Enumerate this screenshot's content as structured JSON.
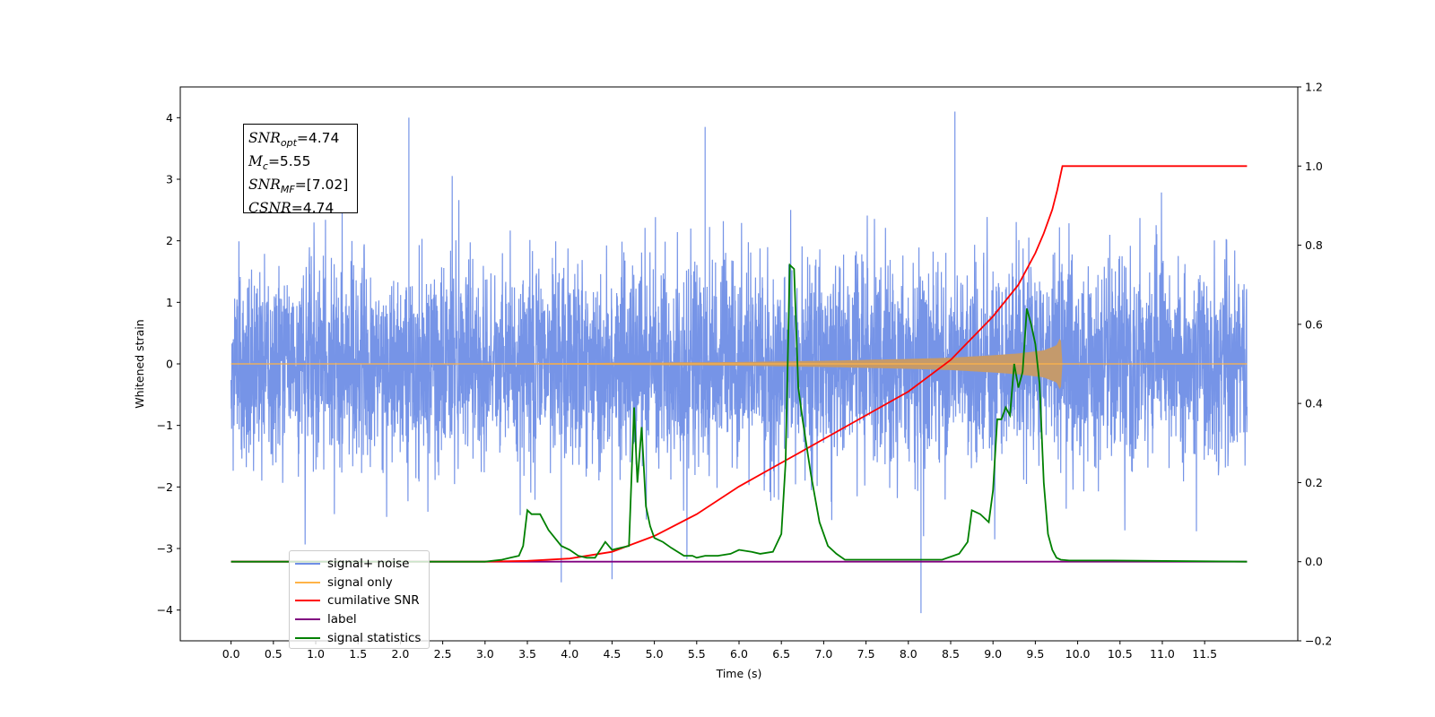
{
  "colors": {
    "signal_noise": "#6f8ee6",
    "signal_only": "#ffb347",
    "cumulative_snr": "#ff0000",
    "label": "#800080",
    "statistics": "#008000",
    "envelope": "#c49a6c"
  },
  "annotation": {
    "snr_opt": {
      "sym": "SNR",
      "sub": "opt",
      "value": "=4.74"
    },
    "mc": {
      "sym": "M",
      "sub": "c",
      "value": "=5.55"
    },
    "snr_mf": {
      "sym": "SNR",
      "sub": "MF",
      "value": "=[7.02]"
    },
    "csnr": {
      "sym": "CSNR",
      "sub": "",
      "value": "=4.74"
    }
  },
  "chart_data": {
    "type": "line",
    "xlabel": "Time (s)",
    "ylabel": "Whitened strain",
    "xlim": [
      -0.6,
      12.6
    ],
    "ylim": [
      -4.5,
      4.5
    ],
    "y2lim": [
      -0.2,
      1.2
    ],
    "x_ticks": [
      "0.0",
      "0.5",
      "1.0",
      "1.5",
      "2.0",
      "2.5",
      "3.0",
      "3.5",
      "4.0",
      "4.5",
      "5.0",
      "5.5",
      "6.0",
      "6.5",
      "7.0",
      "7.5",
      "8.0",
      "8.5",
      "9.0",
      "9.5",
      "10.0",
      "10.5",
      "11.0",
      "11.5"
    ],
    "y_ticks": [
      "−4",
      "−3",
      "−2",
      "−1",
      "0",
      "1",
      "2",
      "3",
      "4"
    ],
    "y2_ticks": [
      "−0.2",
      "0.0",
      "0.2",
      "0.4",
      "0.6",
      "0.8",
      "1.0",
      "1.2"
    ],
    "legend_position": "lower-left",
    "legend": [
      "signal+ noise",
      "signal only",
      "cumilative SNR",
      "label",
      "signal statistics"
    ],
    "series": [
      {
        "name": "signal+ noise",
        "axis": "left",
        "x_range": [
          0.0,
          12.0
        ],
        "description_values": {
          "typical_amplitude": 1.6,
          "peak_max": 4.1,
          "peak_min": -4.05
        },
        "notable_peaks": [
          [
            2.1,
            4.0
          ],
          [
            5.6,
            3.85
          ],
          [
            8.55,
            4.1
          ],
          [
            8.15,
            -4.05
          ],
          [
            3.9,
            -3.55
          ],
          [
            4.5,
            -3.5
          ]
        ]
      },
      {
        "name": "signal only",
        "axis": "left",
        "x": [
          0.0,
          3.0,
          6.0,
          7.0,
          8.0,
          8.5,
          9.0,
          9.3,
          9.6,
          9.75,
          9.8,
          9.82,
          12.0
        ],
        "envelope": [
          0.0,
          0.005,
          0.03,
          0.05,
          0.08,
          0.1,
          0.14,
          0.17,
          0.22,
          0.3,
          0.45,
          0.0,
          0.0
        ]
      },
      {
        "name": "cumilative SNR",
        "axis": "right",
        "x": [
          0.0,
          2.0,
          3.0,
          3.5,
          4.0,
          4.5,
          5.0,
          5.5,
          6.0,
          6.5,
          7.0,
          7.5,
          8.0,
          8.5,
          9.0,
          9.3,
          9.5,
          9.6,
          9.7,
          9.76,
          9.8,
          9.82,
          12.0
        ],
        "y": [
          0.0,
          0.0,
          0.0,
          0.002,
          0.008,
          0.025,
          0.065,
          0.12,
          0.19,
          0.25,
          0.31,
          0.37,
          0.43,
          0.51,
          0.62,
          0.7,
          0.78,
          0.83,
          0.89,
          0.94,
          0.98,
          1.0,
          1.0
        ]
      },
      {
        "name": "label",
        "axis": "right",
        "x": [
          0.0,
          12.0
        ],
        "y": [
          0.0,
          0.0
        ]
      },
      {
        "name": "signal statistics",
        "axis": "right",
        "x": [
          0.0,
          3.0,
          3.2,
          3.3,
          3.4,
          3.45,
          3.5,
          3.55,
          3.65,
          3.75,
          3.9,
          4.0,
          4.1,
          4.2,
          4.3,
          4.42,
          4.5,
          4.6,
          4.7,
          4.76,
          4.8,
          4.85,
          4.9,
          4.95,
          5.0,
          5.05,
          5.1,
          5.2,
          5.35,
          5.45,
          5.5,
          5.6,
          5.75,
          5.9,
          6.0,
          6.15,
          6.25,
          6.4,
          6.5,
          6.55,
          6.6,
          6.65,
          6.7,
          6.75,
          6.85,
          6.95,
          7.05,
          7.15,
          7.25,
          7.4,
          7.6,
          7.8,
          8.0,
          8.2,
          8.4,
          8.6,
          8.7,
          8.75,
          8.85,
          8.95,
          9.0,
          9.05,
          9.1,
          9.15,
          9.2,
          9.25,
          9.3,
          9.35,
          9.4,
          9.45,
          9.5,
          9.55,
          9.6,
          9.65,
          9.7,
          9.75,
          9.8,
          9.9,
          10.0,
          10.2,
          10.4,
          12.0
        ],
        "y": [
          0.0,
          0.0,
          0.005,
          0.01,
          0.015,
          0.04,
          0.13,
          0.12,
          0.12,
          0.08,
          0.04,
          0.03,
          0.015,
          0.01,
          0.01,
          0.05,
          0.03,
          0.035,
          0.04,
          0.39,
          0.2,
          0.34,
          0.14,
          0.09,
          0.06,
          0.055,
          0.05,
          0.035,
          0.015,
          0.015,
          0.01,
          0.015,
          0.015,
          0.02,
          0.03,
          0.025,
          0.02,
          0.025,
          0.07,
          0.25,
          0.75,
          0.74,
          0.44,
          0.36,
          0.22,
          0.1,
          0.04,
          0.02,
          0.005,
          0.005,
          0.005,
          0.005,
          0.005,
          0.005,
          0.005,
          0.02,
          0.05,
          0.13,
          0.12,
          0.1,
          0.18,
          0.36,
          0.36,
          0.39,
          0.37,
          0.5,
          0.44,
          0.48,
          0.64,
          0.6,
          0.55,
          0.45,
          0.2,
          0.07,
          0.03,
          0.01,
          0.005,
          0.003,
          0.003,
          0.003,
          0.003,
          0.0
        ]
      }
    ]
  }
}
